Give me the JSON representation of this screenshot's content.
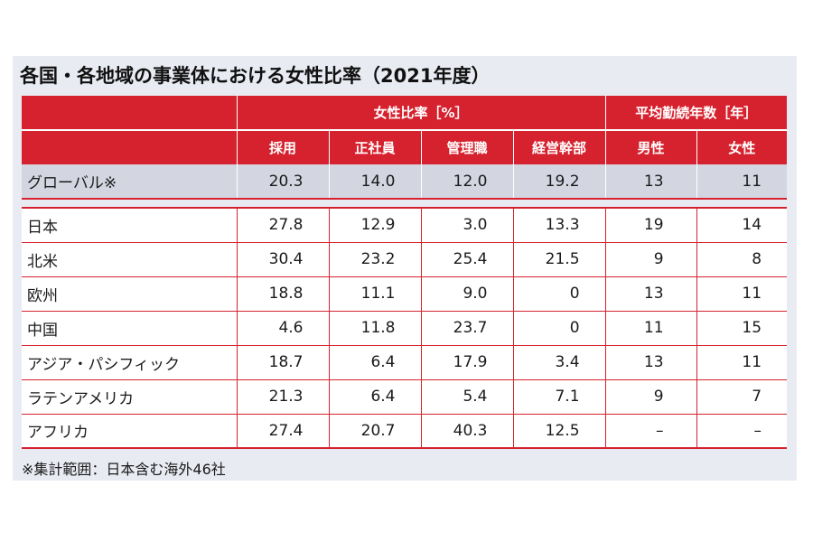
{
  "title": "各国・各地域の事業体における女性比率（2021年度）",
  "header": {
    "group_ratio": "女性比率［%］",
    "group_tenure": "平均勤続年数［年］",
    "columns": [
      "採用",
      "正社員",
      "管理職",
      "経営幹部",
      "男性",
      "女性"
    ]
  },
  "global_row": {
    "label": "グローバル※",
    "values": [
      "20.3",
      "14.0",
      "12.0",
      "19.2",
      "13",
      "11"
    ]
  },
  "rows": [
    {
      "label": "日本",
      "values": [
        "27.8",
        "12.9",
        "3.0",
        "13.3",
        "19",
        "14"
      ]
    },
    {
      "label": "北米",
      "values": [
        "30.4",
        "23.2",
        "25.4",
        "21.5",
        "9",
        "8"
      ]
    },
    {
      "label": "欧州",
      "values": [
        "18.8",
        "11.1",
        "9.0",
        "0",
        "13",
        "11"
      ]
    },
    {
      "label": "中国",
      "values": [
        "4.6",
        "11.8",
        "23.7",
        "0",
        "11",
        "15"
      ]
    },
    {
      "label": "アジア・パシフィック",
      "values": [
        "18.7",
        "6.4",
        "17.9",
        "3.4",
        "13",
        "11"
      ]
    },
    {
      "label": "ラテンアメリカ",
      "values": [
        "21.3",
        "6.4",
        "5.4",
        "7.1",
        "9",
        "7"
      ]
    },
    {
      "label": "アフリカ",
      "values": [
        "27.4",
        "20.7",
        "40.3",
        "12.5",
        "–",
        "–"
      ]
    }
  ],
  "footnote": "※集計範囲：日本含む海外46社",
  "colors": {
    "header_red": "#d6222e",
    "panel_background": "#e9ebf3",
    "global_row_background": "#d3d6e1"
  }
}
